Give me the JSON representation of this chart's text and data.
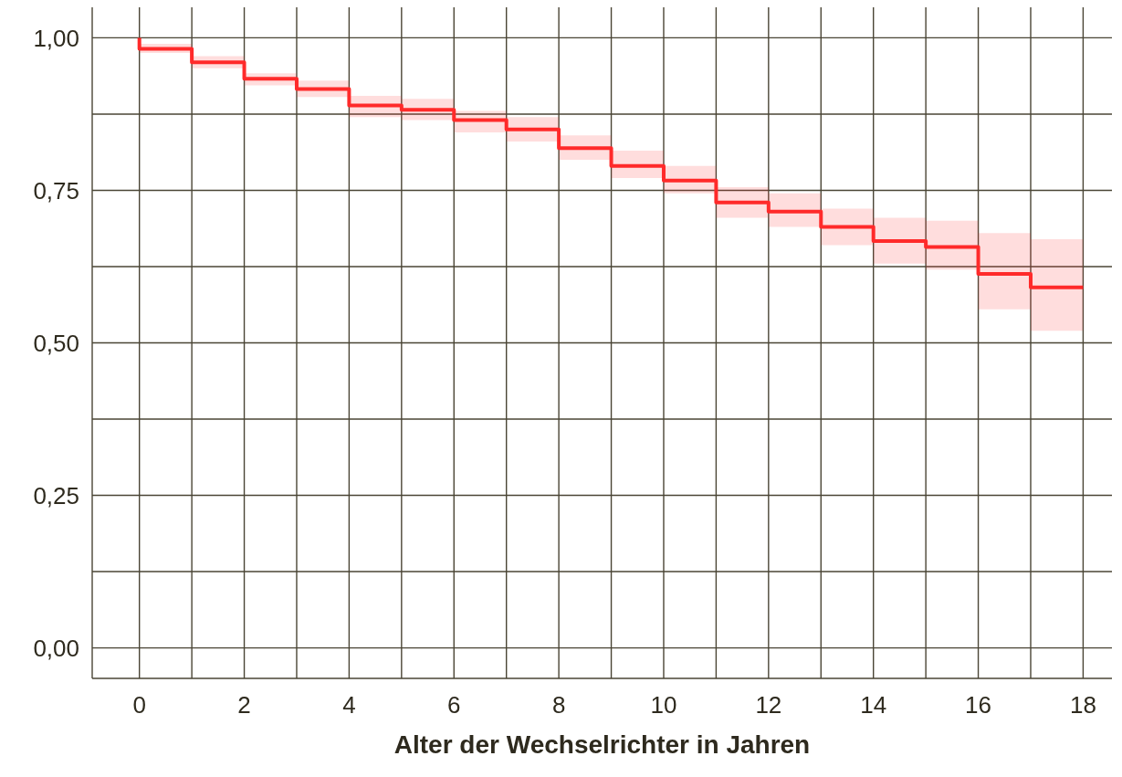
{
  "chart_data": {
    "type": "step",
    "xlabel": "Alter der Wechselrichter in Jahren",
    "x": [
      0,
      0,
      1,
      2,
      3,
      4,
      5,
      6,
      7,
      8,
      9,
      10,
      11,
      12,
      13,
      14,
      15,
      16,
      17,
      18
    ],
    "series": [
      {
        "color": "#ff2a2a",
        "values": [
          1.0,
          0.982,
          0.96,
          0.933,
          0.916,
          0.889,
          0.882,
          0.865,
          0.85,
          0.819,
          0.79,
          0.766,
          0.73,
          0.715,
          0.69,
          0.667,
          0.657,
          0.613,
          0.591,
          0.591
        ],
        "lower": [
          null,
          0.975,
          0.95,
          0.922,
          0.903,
          0.87,
          0.865,
          0.845,
          0.83,
          0.8,
          0.77,
          0.745,
          0.705,
          0.69,
          0.66,
          0.63,
          0.62,
          0.555,
          0.52,
          0.52
        ],
        "upper": [
          null,
          0.99,
          0.97,
          0.942,
          0.93,
          0.905,
          0.9,
          0.88,
          0.87,
          0.84,
          0.815,
          0.79,
          0.755,
          0.745,
          0.72,
          0.705,
          0.7,
          0.68,
          0.67,
          0.67
        ]
      }
    ],
    "xlim": [
      -0.9,
      18.55
    ],
    "ylim": [
      -0.05,
      1.05
    ],
    "xticks": [
      0,
      {
        "value": 1,
        "label": null
      },
      2,
      {
        "value": 3,
        "label": null
      },
      4,
      {
        "value": 5,
        "label": null
      },
      6,
      {
        "value": 7,
        "label": null
      },
      8,
      {
        "value": 9,
        "label": null
      },
      10,
      {
        "value": 11,
        "label": null
      },
      12,
      {
        "value": 13,
        "label": null
      },
      14,
      {
        "value": 15,
        "label": null
      },
      16,
      {
        "value": 17,
        "label": null
      },
      18
    ],
    "yticks": [
      {
        "value": 0,
        "label": "0,00"
      },
      {
        "value": 0.125,
        "label": null
      },
      {
        "value": 0.25,
        "label": "0,25"
      },
      {
        "value": 0.375,
        "label": null
      },
      {
        "value": 0.5,
        "label": "0,50"
      },
      {
        "value": 0.625,
        "label": null
      },
      {
        "value": 0.75,
        "label": "0,75"
      },
      {
        "value": 0.875,
        "label": null
      },
      {
        "value": 1,
        "label": "1,00"
      }
    ],
    "grid": true,
    "marker": "none",
    "line_style": "solid",
    "legend": false
  }
}
